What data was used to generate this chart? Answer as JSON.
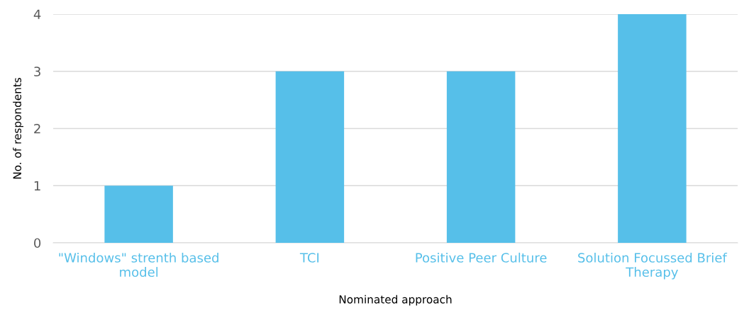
{
  "chart_data": {
    "type": "bar",
    "xlabel": "Nominated approach",
    "ylabel": "No. of respondents",
    "categories": [
      "\"Windows\" strenth based model",
      "TCI",
      "Positive Peer Culture",
      "Solution Focussed Brief Therapy"
    ],
    "values": [
      1,
      3,
      3,
      4
    ],
    "color": "#56bfe9",
    "ylim": [
      0,
      4
    ],
    "yticks": [
      0,
      1,
      2,
      3,
      4
    ],
    "grid": "y"
  }
}
